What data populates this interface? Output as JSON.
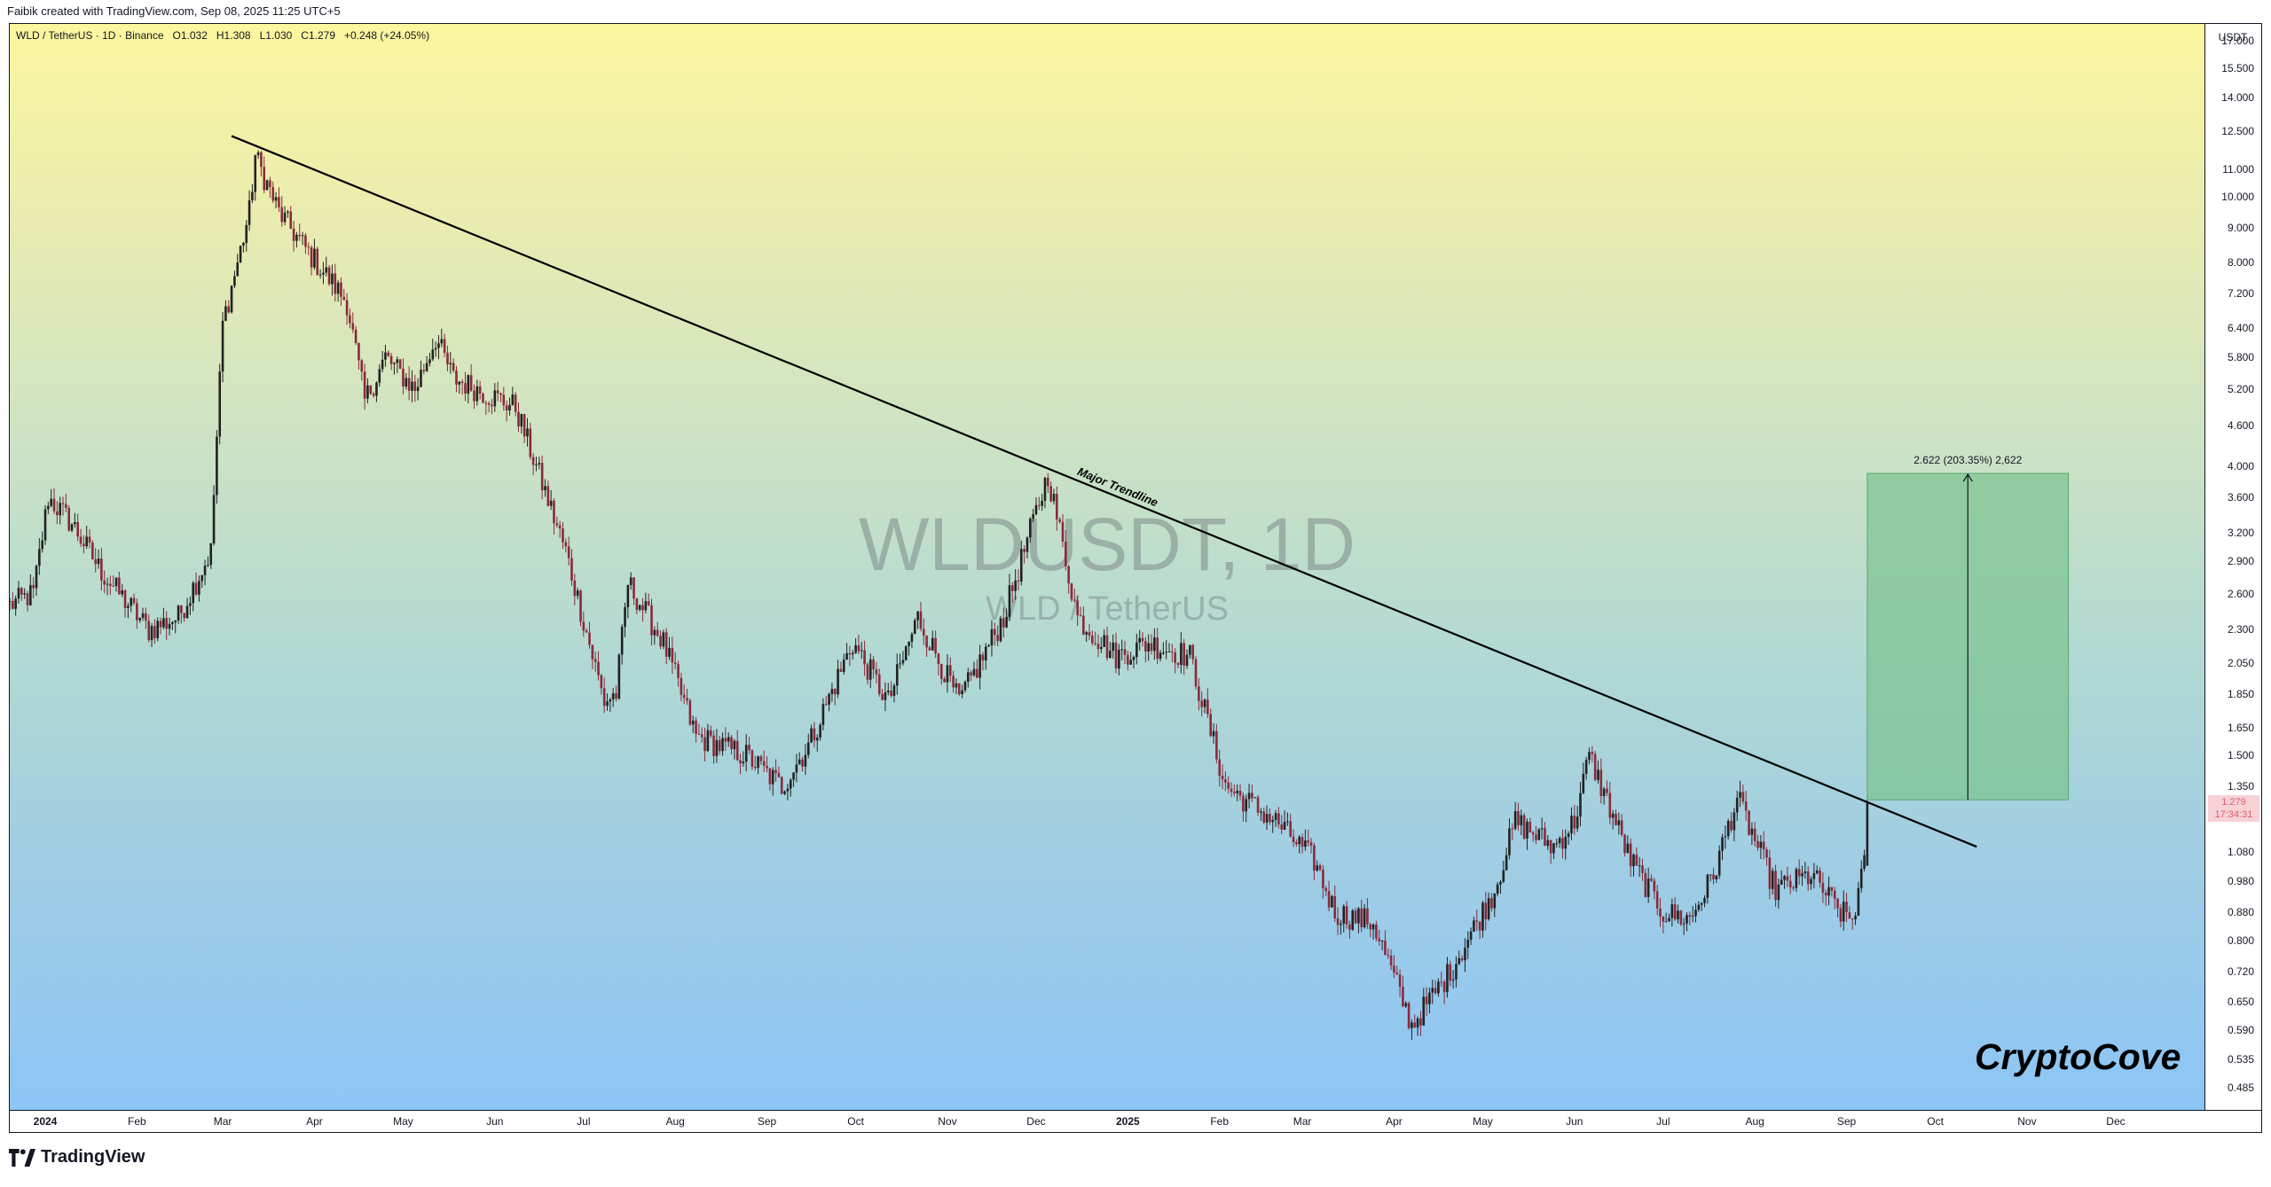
{
  "header": {
    "credit": "Faibik created with TradingView.com, Sep 08, 2025 11:25 UTC+5"
  },
  "legend": {
    "symbol": "WLD / TetherUS · 1D · Binance",
    "open": "O1.032",
    "high": "H1.308",
    "low": "L1.030",
    "close": "C1.279",
    "change": "+0.248 (+24.05%)"
  },
  "watermark": {
    "symbol": "WLDUSDT, 1D",
    "description": "WLD / TetherUS"
  },
  "brand": "CryptoCove",
  "footer": {
    "logo_text": "TradingView"
  },
  "annotations": {
    "trendline_label": "Major Trendline",
    "measure_label": "2.622 (203.35%) 2,622"
  },
  "price_axis": {
    "currency": "USDT",
    "ticks": [
      "17.000",
      "15.500",
      "14.000",
      "12.500",
      "11.000",
      "10.000",
      "9.000",
      "8.000",
      "7.200",
      "6.400",
      "5.800",
      "5.200",
      "4.600",
      "4.000",
      "3.600",
      "3.200",
      "2.900",
      "2.600",
      "2.300",
      "2.050",
      "1.850",
      "1.650",
      "1.500",
      "1.350",
      "1.080",
      "0.980",
      "0.880",
      "0.800",
      "0.720",
      "0.650",
      "0.590",
      "0.535",
      "0.485"
    ],
    "last_price": "1.279",
    "countdown": "17:34:31"
  },
  "time_axis": {
    "labels": [
      {
        "text": "2024",
        "bold": true
      },
      {
        "text": "Feb",
        "bold": false
      },
      {
        "text": "Mar",
        "bold": false
      },
      {
        "text": "Apr",
        "bold": false
      },
      {
        "text": "May",
        "bold": false
      },
      {
        "text": "Jun",
        "bold": false
      },
      {
        "text": "Jul",
        "bold": false
      },
      {
        "text": "Aug",
        "bold": false
      },
      {
        "text": "Sep",
        "bold": false
      },
      {
        "text": "Oct",
        "bold": false
      },
      {
        "text": "Nov",
        "bold": false
      },
      {
        "text": "Dec",
        "bold": false
      },
      {
        "text": "2025",
        "bold": true
      },
      {
        "text": "Feb",
        "bold": false
      },
      {
        "text": "Mar",
        "bold": false
      },
      {
        "text": "Apr",
        "bold": false
      },
      {
        "text": "May",
        "bold": false
      },
      {
        "text": "Jun",
        "bold": false
      },
      {
        "text": "Jul",
        "bold": false
      },
      {
        "text": "Aug",
        "bold": false
      },
      {
        "text": "Sep",
        "bold": false
      },
      {
        "text": "Oct",
        "bold": false
      },
      {
        "text": "Nov",
        "bold": false
      },
      {
        "text": "Dec",
        "bold": false
      }
    ]
  },
  "chart_data": {
    "type": "candlestick",
    "title": "WLD / TetherUS · 1D · Binance",
    "y_scale": "log",
    "ylim": [
      0.45,
      18
    ],
    "xlim": [
      "2023-12-20",
      "2025-12-31"
    ],
    "up_color": "#222222",
    "down_color": "#8a2a3a",
    "price_path": [
      [
        "2023-12-20",
        2.5
      ],
      [
        "2023-12-28",
        2.6
      ],
      [
        "2024-01-02",
        3.6
      ],
      [
        "2024-01-10",
        3.3
      ],
      [
        "2024-01-20",
        2.8
      ],
      [
        "2024-02-05",
        2.3
      ],
      [
        "2024-02-15",
        2.4
      ],
      [
        "2024-02-26",
        3.0
      ],
      [
        "2024-03-01",
        6.5
      ],
      [
        "2024-03-06",
        8.0
      ],
      [
        "2024-03-10",
        9.5
      ],
      [
        "2024-03-12",
        11.5
      ],
      [
        "2024-03-20",
        9.5
      ],
      [
        "2024-03-28",
        8.5
      ],
      [
        "2024-04-12",
        7.0
      ],
      [
        "2024-04-18",
        5.0
      ],
      [
        "2024-04-25",
        5.8
      ],
      [
        "2024-05-05",
        5.2
      ],
      [
        "2024-05-12",
        6.2
      ],
      [
        "2024-05-18",
        5.4
      ],
      [
        "2024-06-08",
        4.9
      ],
      [
        "2024-06-15",
        4.0
      ],
      [
        "2024-06-25",
        3.0
      ],
      [
        "2024-07-08",
        1.8
      ],
      [
        "2024-07-12",
        1.85
      ],
      [
        "2024-07-16",
        2.7
      ],
      [
        "2024-07-28",
        2.2
      ],
      [
        "2024-08-08",
        1.6
      ],
      [
        "2024-08-25",
        1.5
      ],
      [
        "2024-09-06",
        1.35
      ],
      [
        "2024-09-15",
        1.55
      ],
      [
        "2024-09-30",
        2.2
      ],
      [
        "2024-10-12",
        1.8
      ],
      [
        "2024-10-22",
        2.4
      ],
      [
        "2024-11-05",
        1.8
      ],
      [
        "2024-11-20",
        2.4
      ],
      [
        "2024-12-05",
        3.9
      ],
      [
        "2024-12-15",
        2.4
      ],
      [
        "2024-12-28",
        2.1
      ],
      [
        "2025-01-08",
        2.2
      ],
      [
        "2025-01-22",
        2.1
      ],
      [
        "2025-02-03",
        1.35
      ],
      [
        "2025-02-20",
        1.2
      ],
      [
        "2025-03-05",
        1.05
      ],
      [
        "2025-03-12",
        0.88
      ],
      [
        "2025-03-25",
        0.85
      ],
      [
        "2025-04-07",
        0.6
      ],
      [
        "2025-04-20",
        0.72
      ],
      [
        "2025-05-05",
        0.95
      ],
      [
        "2025-05-12",
        1.2
      ],
      [
        "2025-05-25",
        1.1
      ],
      [
        "2025-06-01",
        1.2
      ],
      [
        "2025-06-06",
        1.5
      ],
      [
        "2025-06-20",
        1.05
      ],
      [
        "2025-07-01",
        0.88
      ],
      [
        "2025-07-10",
        0.86
      ],
      [
        "2025-07-18",
        1.0
      ],
      [
        "2025-07-26",
        1.3
      ],
      [
        "2025-08-08",
        0.95
      ],
      [
        "2025-08-20",
        1.0
      ],
      [
        "2025-08-30",
        0.88
      ],
      [
        "2025-09-03",
        0.86
      ],
      [
        "2025-09-07",
        1.03
      ],
      [
        "2025-09-08",
        1.279
      ]
    ],
    "trendline": {
      "label": "Major Trendline",
      "from": [
        "2024-03-04",
        12.3
      ],
      "to": [
        "2025-10-15",
        1.1
      ]
    },
    "target_box": {
      "label": "2.622 (203.35%) 2,622",
      "from": [
        "2025-09-08",
        1.29
      ],
      "to": [
        "2025-11-15",
        3.91
      ],
      "color": "#7cc490"
    }
  }
}
